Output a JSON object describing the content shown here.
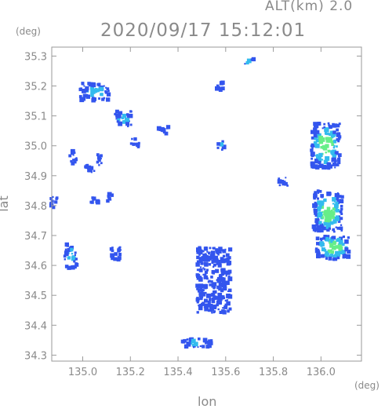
{
  "header": {
    "altitude_label": "ALT(km) 2.0",
    "timestamp": "2020/09/17 15:12:01"
  },
  "axes": {
    "y_unit": "(deg)",
    "x_unit": "(deg)",
    "x_label": "lon",
    "y_label": "lat"
  },
  "chart_data": {
    "type": "heatmap",
    "xlabel": "lon",
    "ylabel": "lat",
    "xlim": [
      134.87,
      136.17
    ],
    "ylim": [
      34.28,
      35.33
    ],
    "x_ticks": [
      "135.0",
      "135.2",
      "135.4",
      "135.6",
      "135.8",
      "136.0"
    ],
    "y_ticks": [
      "35.3",
      "35.2",
      "35.1",
      "35.0",
      "34.9",
      "34.8",
      "34.7",
      "34.6",
      "34.5",
      "34.4",
      "34.3"
    ],
    "colors": {
      "weak": "#3355ee",
      "moderate": "#33bbee",
      "strong": "#66ee88"
    },
    "echo_regions": [
      {
        "lon": 135.05,
        "lat": 35.18,
        "w": 0.12,
        "h": 0.06,
        "level": "moderate"
      },
      {
        "lon": 134.96,
        "lat": 34.96,
        "w": 0.03,
        "h": 0.05,
        "level": "weak"
      },
      {
        "lon": 134.88,
        "lat": 34.81,
        "w": 0.03,
        "h": 0.04,
        "level": "weak"
      },
      {
        "lon": 134.95,
        "lat": 34.63,
        "w": 0.05,
        "h": 0.08,
        "level": "moderate"
      },
      {
        "lon": 135.03,
        "lat": 34.92,
        "w": 0.04,
        "h": 0.04,
        "level": "weak"
      },
      {
        "lon": 135.07,
        "lat": 34.95,
        "w": 0.03,
        "h": 0.04,
        "level": "weak"
      },
      {
        "lon": 135.05,
        "lat": 34.82,
        "w": 0.03,
        "h": 0.03,
        "level": "weak"
      },
      {
        "lon": 135.12,
        "lat": 34.83,
        "w": 0.03,
        "h": 0.03,
        "level": "weak"
      },
      {
        "lon": 135.17,
        "lat": 35.09,
        "w": 0.07,
        "h": 0.05,
        "level": "moderate"
      },
      {
        "lon": 135.22,
        "lat": 35.01,
        "w": 0.04,
        "h": 0.03,
        "level": "weak"
      },
      {
        "lon": 135.14,
        "lat": 34.64,
        "w": 0.04,
        "h": 0.05,
        "level": "weak"
      },
      {
        "lon": 135.34,
        "lat": 35.05,
        "w": 0.04,
        "h": 0.03,
        "level": "weak"
      },
      {
        "lon": 135.58,
        "lat": 35.0,
        "w": 0.03,
        "h": 0.03,
        "level": "moderate"
      },
      {
        "lon": 135.58,
        "lat": 35.2,
        "w": 0.04,
        "h": 0.03,
        "level": "weak"
      },
      {
        "lon": 135.7,
        "lat": 35.28,
        "w": 0.04,
        "h": 0.02,
        "level": "moderate"
      },
      {
        "lon": 135.55,
        "lat": 34.55,
        "w": 0.14,
        "h": 0.22,
        "level": "weak"
      },
      {
        "lon": 135.48,
        "lat": 34.34,
        "w": 0.12,
        "h": 0.03,
        "level": "moderate"
      },
      {
        "lon": 136.02,
        "lat": 35.0,
        "w": 0.12,
        "h": 0.15,
        "level": "strong"
      },
      {
        "lon": 136.03,
        "lat": 34.78,
        "w": 0.12,
        "h": 0.14,
        "level": "strong"
      },
      {
        "lon": 136.05,
        "lat": 34.66,
        "w": 0.14,
        "h": 0.08,
        "level": "strong"
      },
      {
        "lon": 135.84,
        "lat": 34.88,
        "w": 0.04,
        "h": 0.03,
        "level": "weak"
      }
    ]
  }
}
